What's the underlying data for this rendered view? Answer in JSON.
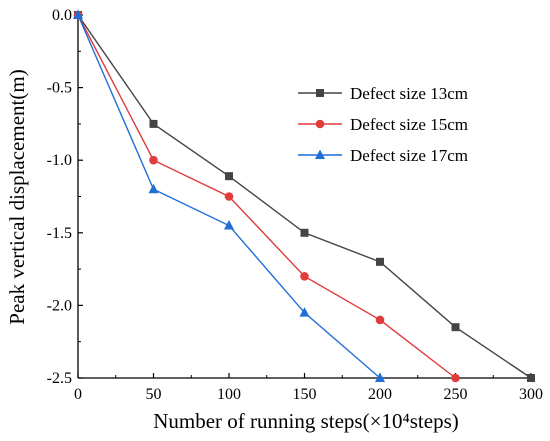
{
  "chart_data": {
    "type": "line",
    "title": "",
    "xlabel": "Number of running steps(×10⁴steps)",
    "ylabel": "Peak vertical displacement(m)",
    "xlim": [
      0,
      300
    ],
    "ylim": [
      -2.5,
      0.0
    ],
    "x_ticks": [
      "0",
      "50",
      "100",
      "150",
      "200",
      "250",
      "300"
    ],
    "y_ticks": [
      "0.0",
      "-0.5",
      "-1.0",
      "-1.5",
      "-2.0",
      "-2.5"
    ],
    "grid": false,
    "legend_position": "top-right",
    "series": [
      {
        "name": "Defect size 13cm",
        "color": "#444444",
        "marker": "square",
        "x": [
          0,
          50,
          100,
          150,
          200,
          250,
          300
        ],
        "y": [
          0.0,
          -0.75,
          -1.11,
          -1.5,
          -1.7,
          -2.15,
          -2.5
        ]
      },
      {
        "name": "Defect size 15cm",
        "color": "#e03c3c",
        "marker": "circle",
        "x": [
          0,
          50,
          100,
          150,
          200,
          250
        ],
        "y": [
          0.0,
          -1.0,
          -1.25,
          -1.8,
          -2.1,
          -2.5
        ]
      },
      {
        "name": "Defect size 17cm",
        "color": "#1f6fd6",
        "marker": "triangle",
        "x": [
          0,
          50,
          100,
          150,
          200
        ],
        "y": [
          0.0,
          -1.2,
          -1.45,
          -2.05,
          -2.5
        ]
      }
    ]
  }
}
